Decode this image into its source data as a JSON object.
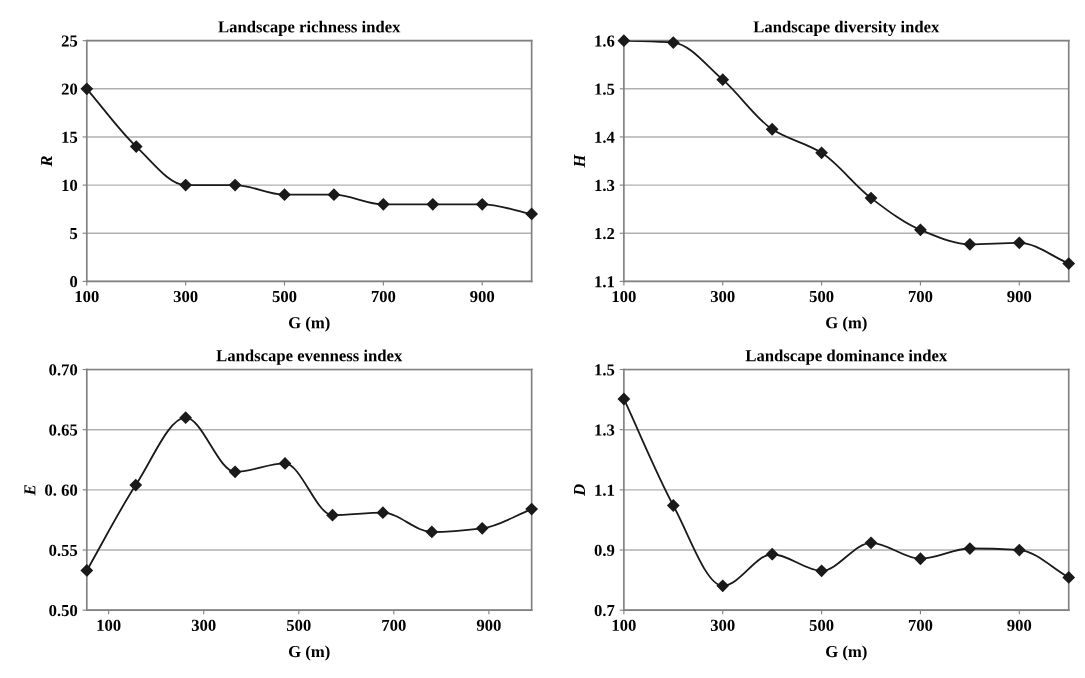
{
  "chart_data": [
    {
      "type": "line",
      "title": "Landscape richness index",
      "xlabel": "G (m)",
      "ylabel": "R",
      "x": [
        100,
        200,
        300,
        400,
        500,
        600,
        700,
        800,
        900,
        1000
      ],
      "series": [
        {
          "color": "#1a1a1a",
          "values": [
            20,
            14,
            10,
            10,
            9,
            9,
            8,
            8,
            8,
            7
          ]
        }
      ],
      "xlim": [
        100,
        1000
      ],
      "xticks": [
        100,
        300,
        500,
        700,
        900
      ],
      "ylim": [
        0,
        25
      ],
      "yticks": [
        0,
        5,
        10,
        15,
        20,
        25
      ],
      "grid": "y",
      "marker": "diamond",
      "line_style": "solid"
    },
    {
      "type": "line",
      "title": "Landscape diversity index",
      "xlabel": "G (m)",
      "ylabel": "H",
      "x": [
        100,
        200,
        300,
        400,
        500,
        600,
        700,
        800,
        900,
        1000
      ],
      "series": [
        {
          "color": "#1a1a1a",
          "values": [
            1.6,
            1.596,
            1.519,
            1.416,
            1.367,
            1.273,
            1.207,
            1.177,
            1.18,
            1.137
          ]
        }
      ],
      "xlim": [
        100,
        1000
      ],
      "xticks": [
        100,
        300,
        500,
        700,
        900
      ],
      "ylim": [
        1.1,
        1.6
      ],
      "yticks": [
        1.1,
        1.2,
        1.3,
        1.4,
        1.5,
        1.6
      ],
      "grid": "y",
      "marker": "diamond",
      "line_style": "solid"
    },
    {
      "type": "line",
      "title": "Landscape evenness index",
      "xlabel": "G (m)",
      "ylabel": "E",
      "x": [
        54,
        157,
        262,
        366,
        471,
        571,
        677,
        780,
        886,
        990
      ],
      "series": [
        {
          "color": "#1a1a1a",
          "values": [
            0.533,
            0.604,
            0.66,
            0.615,
            0.622,
            0.579,
            0.581,
            0.565,
            0.568,
            0.584
          ]
        }
      ],
      "xlim": [
        54,
        990
      ],
      "xticks": [
        100,
        300,
        500,
        700,
        900
      ],
      "ylim": [
        0.5,
        0.7
      ],
      "yticks": [
        {
          "value": 0.5,
          "label": "0.50"
        },
        {
          "value": 0.55,
          "label": "0.55"
        },
        {
          "value": 0.6,
          "label": "0. 60"
        },
        {
          "value": 0.65,
          "label": "0.65"
        },
        {
          "value": 0.7,
          "label": "0.70"
        }
      ],
      "grid": "y",
      "marker": "diamond",
      "line_style": "solid"
    },
    {
      "type": "line",
      "title": "Landscape dominance index",
      "xlabel": "G (m)",
      "ylabel": "D",
      "x": [
        100,
        200,
        300,
        400,
        500,
        600,
        700,
        800,
        900,
        1000
      ],
      "series": [
        {
          "color": "#1a1a1a",
          "values": [
            1.402,
            1.048,
            0.781,
            0.886,
            0.831,
            0.924,
            0.871,
            0.905,
            0.9,
            0.809
          ]
        }
      ],
      "xlim": [
        100,
        1000
      ],
      "xticks": [
        100,
        300,
        500,
        700,
        900
      ],
      "ylim": [
        0.7,
        1.5
      ],
      "yticks": [
        0.7,
        0.9,
        1.1,
        1.3,
        1.5
      ],
      "grid": "y",
      "marker": "diamond",
      "line_style": "solid"
    }
  ]
}
